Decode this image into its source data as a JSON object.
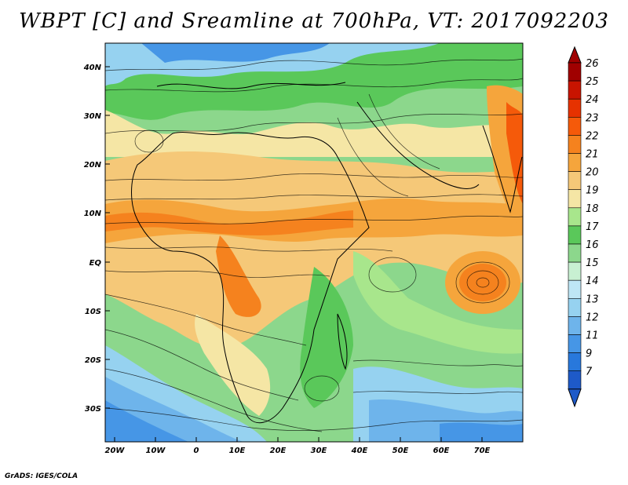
{
  "title": "WBPT [C] and Sreamline at 700hPa, VT: 2017092203",
  "credit": "GrADS: IGES/COLA",
  "map": {
    "lat_labels": [
      "40N",
      "30N",
      "20N",
      "10N",
      "EQ",
      "10S",
      "20S",
      "30S"
    ],
    "lon_labels": [
      "20W",
      "10W",
      "0",
      "10E",
      "20E",
      "30E",
      "40E",
      "50E",
      "60E",
      "70E"
    ]
  },
  "colorbar": {
    "levels": [
      "26",
      "25",
      "24",
      "23",
      "22",
      "21",
      "20",
      "19",
      "18",
      "17",
      "16",
      "15",
      "14",
      "13",
      "12",
      "11",
      "9",
      "7"
    ],
    "colors": [
      "#a00000",
      "#c81400",
      "#e63200",
      "#f55a0a",
      "#f5821e",
      "#f5a53c",
      "#f5c878",
      "#f5e6a5",
      "#a8e68c",
      "#5ac85a",
      "#8cd78c",
      "#c8f0d2",
      "#bee6f5",
      "#96d2f0",
      "#6eb4eb",
      "#4696e6",
      "#2878dc",
      "#1e5ac8"
    ]
  }
}
